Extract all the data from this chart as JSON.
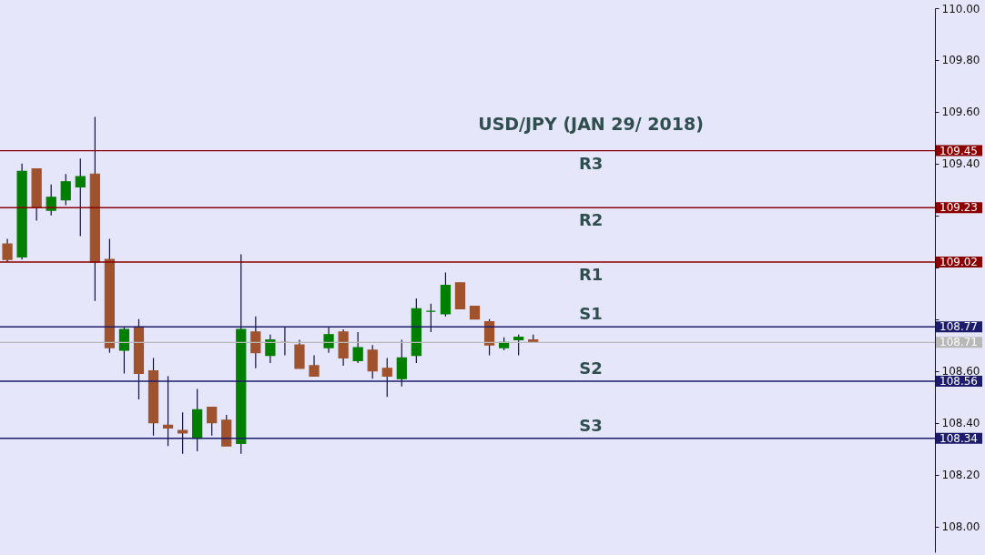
{
  "chart_data": {
    "type": "candlestick",
    "title": "USD/JPY (JAN 29/ 2018)",
    "categories": [
      null,
      null,
      null,
      null,
      null,
      null,
      null,
      null,
      null,
      null,
      null,
      null,
      null,
      null,
      null,
      null,
      null,
      null,
      null,
      null,
      null,
      null,
      null,
      null,
      null,
      null,
      null,
      null,
      null,
      null,
      null,
      null,
      null,
      null,
      null,
      null,
      null,
      null,
      null,
      null,
      null,
      null,
      null,
      null,
      null,
      null,
      null,
      null,
      null,
      null,
      null,
      null,
      null,
      null,
      null,
      null,
      null,
      null,
      null,
      null,
      null,
      null,
      null,
      null
    ],
    "ohlc": [
      [
        109.09,
        109.11,
        109.02,
        109.03
      ],
      [
        109.04,
        109.4,
        109.03,
        109.37
      ],
      [
        109.38,
        109.38,
        109.18,
        109.23
      ],
      [
        109.22,
        109.32,
        109.2,
        109.27
      ],
      [
        109.26,
        109.36,
        109.24,
        109.33
      ],
      [
        109.31,
        109.42,
        109.12,
        109.35
      ],
      [
        109.36,
        109.58,
        108.87,
        109.02
      ],
      [
        109.03,
        109.11,
        108.67,
        108.69
      ],
      [
        108.68,
        108.77,
        108.59,
        108.76
      ],
      [
        108.77,
        108.8,
        108.49,
        108.59
      ],
      [
        108.6,
        108.65,
        108.35,
        108.4
      ],
      [
        108.39,
        108.58,
        108.31,
        108.38
      ],
      [
        108.37,
        108.44,
        108.28,
        108.36
      ],
      [
        108.34,
        108.53,
        108.29,
        108.45
      ],
      [
        108.46,
        108.46,
        108.35,
        108.4
      ],
      [
        108.41,
        108.43,
        108.31,
        108.31
      ],
      [
        108.32,
        109.05,
        108.28,
        108.76
      ],
      [
        108.75,
        108.81,
        108.61,
        108.67
      ],
      [
        108.66,
        108.74,
        108.63,
        108.72
      ],
      [
        108.71,
        108.77,
        108.66,
        108.71
      ],
      [
        108.7,
        108.72,
        108.61,
        108.61
      ],
      [
        108.62,
        108.66,
        108.58,
        108.58
      ],
      [
        108.69,
        108.77,
        108.67,
        108.74
      ],
      [
        108.75,
        108.76,
        108.62,
        108.65
      ],
      [
        108.64,
        108.75,
        108.63,
        108.69
      ],
      [
        108.68,
        108.7,
        108.57,
        108.6
      ],
      [
        108.61,
        108.65,
        108.5,
        108.58
      ],
      [
        108.57,
        108.72,
        108.54,
        108.65
      ],
      [
        108.66,
        108.88,
        108.63,
        108.84
      ],
      [
        108.83,
        108.86,
        108.75,
        108.83
      ],
      [
        108.82,
        108.98,
        108.81,
        108.93
      ],
      [
        108.94,
        108.94,
        108.84,
        108.84
      ],
      [
        108.85,
        108.85,
        108.8,
        108.8
      ],
      [
        108.79,
        108.8,
        108.66,
        108.7
      ],
      [
        108.69,
        108.73,
        108.68,
        108.71
      ],
      [
        108.72,
        108.74,
        108.66,
        108.73
      ],
      [
        108.72,
        108.74,
        108.71,
        108.71
      ],
      null,
      null,
      null,
      null,
      null,
      null,
      null,
      null,
      null,
      null,
      null,
      null,
      null,
      null,
      null,
      null,
      null,
      null,
      null,
      null,
      null,
      null,
      null,
      null,
      null,
      null,
      null
    ],
    "colors": [
      "#a0522d",
      "#007f00",
      "#a0522d",
      "#007f00",
      "#007f00",
      "#007f00",
      "#a0522d",
      "#a0522d",
      "#007f00",
      "#a0522d",
      "#a0522d",
      "#a0522d",
      "#a0522d",
      "#007f00",
      "#a0522d",
      "#a0522d",
      "#007f00",
      "#a0522d",
      "#007f00",
      "#a0522d",
      "#a0522d",
      "#a0522d",
      "#007f00",
      "#a0522d",
      "#007f00",
      "#a0522d",
      "#a0522d",
      "#007f00",
      "#007f00",
      "#007f00",
      "#007f00",
      "#a0522d",
      "#a0522d",
      "#a0522d",
      "#007f00",
      "#007f00",
      "#a0522d",
      null,
      null,
      null,
      null,
      null,
      null,
      null,
      null,
      null,
      null,
      null,
      null,
      null,
      null,
      null,
      null,
      null,
      null,
      null,
      null,
      null,
      null,
      null,
      null,
      null,
      null,
      null
    ],
    "ylim": [
      107.9,
      110.0
    ],
    "yticks": [
      {
        "value": 108.0,
        "label": "108.00"
      },
      {
        "value": 108.2,
        "label": "108.20"
      },
      {
        "value": 108.4,
        "label": "108.40"
      },
      {
        "value": 108.6,
        "label": "108.60"
      },
      {
        "value": 108.8,
        "label": null
      },
      {
        "value": 109.0,
        "label": null
      },
      {
        "value": 109.2,
        "label": null
      },
      {
        "value": 109.4,
        "label": "109.40"
      },
      {
        "value": 109.6,
        "label": "109.60"
      },
      {
        "value": 109.8,
        "label": "109.80"
      },
      {
        "value": 110.0,
        "label": "110.00"
      }
    ],
    "tick_labels": "y",
    "ref_lines": [
      {
        "axis": "y",
        "value": 109.45,
        "label": "109.45",
        "color": "#8b0000"
      },
      {
        "axis": "y",
        "value": 109.23,
        "label": "109.23",
        "color": "#8b0000"
      },
      {
        "axis": "y",
        "value": 109.02,
        "label": "109.02",
        "color": "#8b0000"
      },
      {
        "axis": "y",
        "value": 108.77,
        "label": "108.77",
        "color": "#1c1c6b"
      },
      {
        "axis": "y",
        "value": 108.71,
        "label": "108.71",
        "color": "#b8b8b8"
      },
      {
        "axis": "y",
        "value": 108.56,
        "label": "108.56",
        "color": "#1c1c6b"
      },
      {
        "axis": "y",
        "value": 108.34,
        "label": "108.34",
        "color": "#1c1c6b"
      }
    ],
    "annotations": [
      {
        "text": "R3",
        "y": 109.45
      },
      {
        "text": "R2",
        "y": 109.23
      },
      {
        "text": "R1",
        "y": 109.02
      },
      {
        "text": "S1",
        "y": 108.77
      },
      {
        "text": "S2",
        "y": 108.56
      },
      {
        "text": "S3",
        "y": 108.34
      }
    ],
    "grid": false
  }
}
